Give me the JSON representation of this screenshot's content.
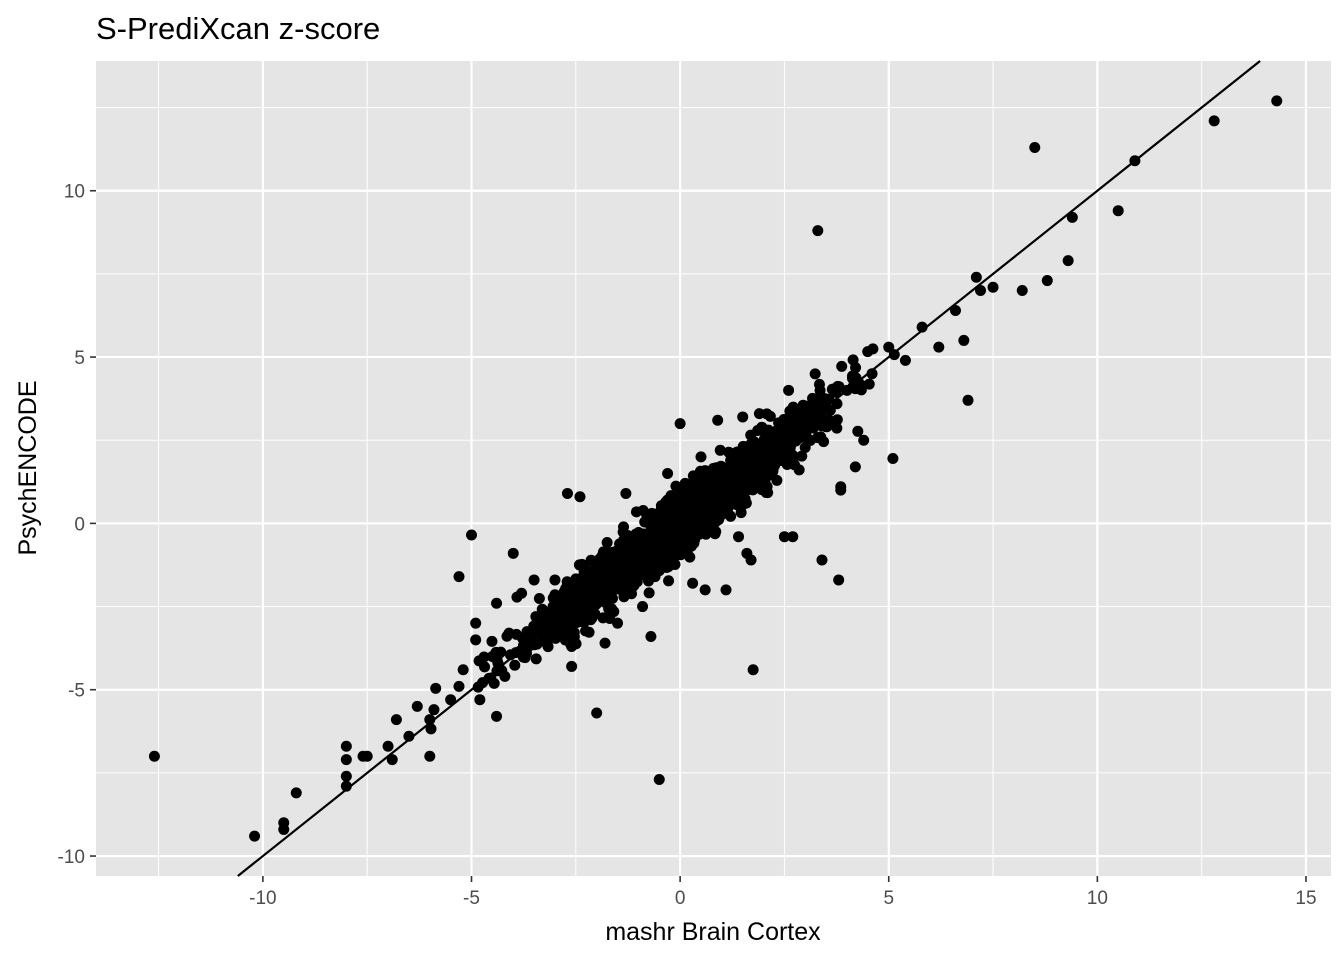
{
  "chart_data": {
    "type": "scatter",
    "title": "S-PrediXcan z-score",
    "xlabel": "mashr Brain Cortex",
    "ylabel": "PsychENCODE",
    "xlim": [
      -14.0,
      15.6
    ],
    "ylim": [
      -10.6,
      13.9
    ],
    "x_ticks": [
      -10,
      -5,
      0,
      5,
      10,
      15
    ],
    "x_tick_labels": [
      "-10",
      "-5",
      "0",
      "5",
      "10",
      "15"
    ],
    "y_ticks": [
      -10,
      -5,
      0,
      5,
      10
    ],
    "y_tick_labels": [
      "-10",
      "-5",
      "0",
      "5",
      "10"
    ],
    "grid": true,
    "panel_color": "#e5e5e5",
    "grid_color": "#ffffff",
    "point_color": "#000000",
    "reference_line": {
      "intercept": 0,
      "slope": 1
    },
    "dense_cloud_note": "several thousand points cluster tightly along y = x between roughly x = -6 and x = 7",
    "series": [
      {
        "values": [
          [
            -12.6,
            -7.0
          ],
          [
            -10.2,
            -9.4
          ],
          [
            -9.5,
            -9.0
          ],
          [
            -9.5,
            -9.2
          ],
          [
            -9.2,
            -8.1
          ],
          [
            -8.0,
            -6.7
          ],
          [
            -8.0,
            -7.1
          ],
          [
            -8.0,
            -7.6
          ],
          [
            -8.0,
            -7.9
          ],
          [
            -7.6,
            -7.0
          ],
          [
            -7.5,
            -7.0
          ],
          [
            -7.0,
            -6.7
          ],
          [
            -6.9,
            -7.1
          ],
          [
            -6.8,
            -5.9
          ],
          [
            -6.5,
            -6.4
          ],
          [
            -6.3,
            -5.5
          ],
          [
            -6.0,
            -5.9
          ],
          [
            -6.0,
            -7.0
          ],
          [
            -5.9,
            -5.6
          ],
          [
            -5.5,
            -5.3
          ],
          [
            -5.3,
            -4.9
          ],
          [
            -5.3,
            -1.6
          ],
          [
            -5.2,
            -4.4
          ],
          [
            -5.0,
            -0.35
          ],
          [
            -4.9,
            -3.0
          ],
          [
            -4.9,
            -3.5
          ],
          [
            -4.8,
            -5.3
          ],
          [
            -4.5,
            -4.0
          ],
          [
            -4.4,
            -2.4
          ],
          [
            -4.4,
            -5.8
          ],
          [
            -4.2,
            -4.6
          ],
          [
            -4.1,
            -3.3
          ],
          [
            -4.0,
            -0.9
          ],
          [
            -3.8,
            -2.1
          ],
          [
            -3.5,
            -1.7
          ],
          [
            -3.0,
            -1.7
          ],
          [
            -2.7,
            0.9
          ],
          [
            -2.6,
            -3.7
          ],
          [
            -2.6,
            -4.3
          ],
          [
            -2.4,
            0.8
          ],
          [
            -2.0,
            -5.7
          ],
          [
            -1.8,
            -3.6
          ],
          [
            -1.6,
            -1.6
          ],
          [
            -1.5,
            -3.0
          ],
          [
            -1.3,
            0.9
          ],
          [
            -1.0,
            -1.1
          ],
          [
            -0.9,
            -2.5
          ],
          [
            -0.7,
            -3.4
          ],
          [
            -0.6,
            -1.6
          ],
          [
            -0.5,
            -7.7
          ],
          [
            -0.4,
            -0.3
          ],
          [
            -0.3,
            1.5
          ],
          [
            -0.1,
            -0.9
          ],
          [
            0.0,
            3.0
          ],
          [
            0.3,
            -1.8
          ],
          [
            0.5,
            2.0
          ],
          [
            0.6,
            -2.0
          ],
          [
            0.9,
            3.1
          ],
          [
            1.1,
            -2.0
          ],
          [
            1.3,
            2.1
          ],
          [
            1.4,
            -0.4
          ],
          [
            1.5,
            3.2
          ],
          [
            1.6,
            -0.9
          ],
          [
            1.7,
            -1.1
          ],
          [
            1.75,
            -4.4
          ],
          [
            1.9,
            3.3
          ],
          [
            2.2,
            1.7
          ],
          [
            2.3,
            2.5
          ],
          [
            2.5,
            -0.4
          ],
          [
            2.6,
            4.0
          ],
          [
            2.7,
            -0.4
          ],
          [
            3.0,
            3.3
          ],
          [
            3.3,
            8.8
          ],
          [
            3.4,
            -1.1
          ],
          [
            3.6,
            3.4
          ],
          [
            3.8,
            -1.7
          ],
          [
            3.85,
            1.1
          ],
          [
            3.85,
            1.0
          ],
          [
            4.0,
            4.0
          ],
          [
            4.3,
            4.2
          ],
          [
            4.4,
            2.5
          ],
          [
            4.2,
            1.7
          ],
          [
            4.6,
            4.5
          ],
          [
            5.1,
            1.95
          ],
          [
            5.0,
            5.3
          ],
          [
            5.4,
            4.9
          ],
          [
            5.8,
            5.9
          ],
          [
            6.2,
            5.3
          ],
          [
            6.6,
            6.4
          ],
          [
            6.8,
            5.5
          ],
          [
            6.9,
            3.7
          ],
          [
            7.1,
            7.4
          ],
          [
            7.2,
            7.0
          ],
          [
            7.5,
            7.1
          ],
          [
            8.2,
            7.0
          ],
          [
            8.5,
            11.3
          ],
          [
            8.8,
            7.3
          ],
          [
            9.3,
            7.9
          ],
          [
            9.4,
            9.2
          ],
          [
            10.5,
            9.4
          ],
          [
            10.9,
            10.9
          ],
          [
            12.8,
            12.1
          ],
          [
            14.3,
            12.7
          ]
        ]
      }
    ]
  }
}
